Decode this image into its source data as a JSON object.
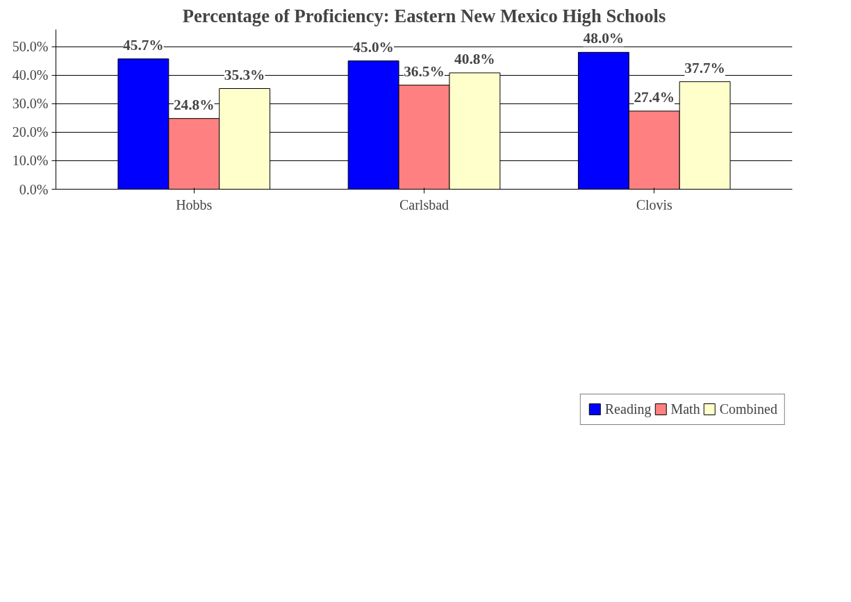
{
  "chart_data": {
    "type": "bar",
    "title": "Percentage of Proficiency: Eastern New Mexico High Schools",
    "categories": [
      "Hobbs",
      "Carlsbad",
      "Clovis"
    ],
    "series": [
      {
        "name": "Reading",
        "color": "#0000ff",
        "values": [
          45.7,
          45.0,
          48.0
        ],
        "value_labels": [
          "45.7%",
          "45.0%",
          "48.0%"
        ]
      },
      {
        "name": "Math",
        "color": "#ff8080",
        "values": [
          24.8,
          36.5,
          27.4
        ],
        "value_labels": [
          "24.8%",
          "36.5%",
          "27.4%"
        ]
      },
      {
        "name": "Combined",
        "color": "#ffffcc",
        "values": [
          35.3,
          40.8,
          37.7
        ],
        "value_labels": [
          "35.3%",
          "40.8%",
          "37.7%"
        ]
      }
    ],
    "ylim": [
      0,
      50
    ],
    "yticks": [
      {
        "value": 0,
        "label": "0.0%"
      },
      {
        "value": 10,
        "label": "10.0%"
      },
      {
        "value": 20,
        "label": "20.0%"
      },
      {
        "value": 30,
        "label": "30.0%"
      },
      {
        "value": 40,
        "label": "40.0%"
      },
      {
        "value": 50,
        "label": "50.0%"
      }
    ],
    "grid": "y",
    "legend": "bottom"
  }
}
